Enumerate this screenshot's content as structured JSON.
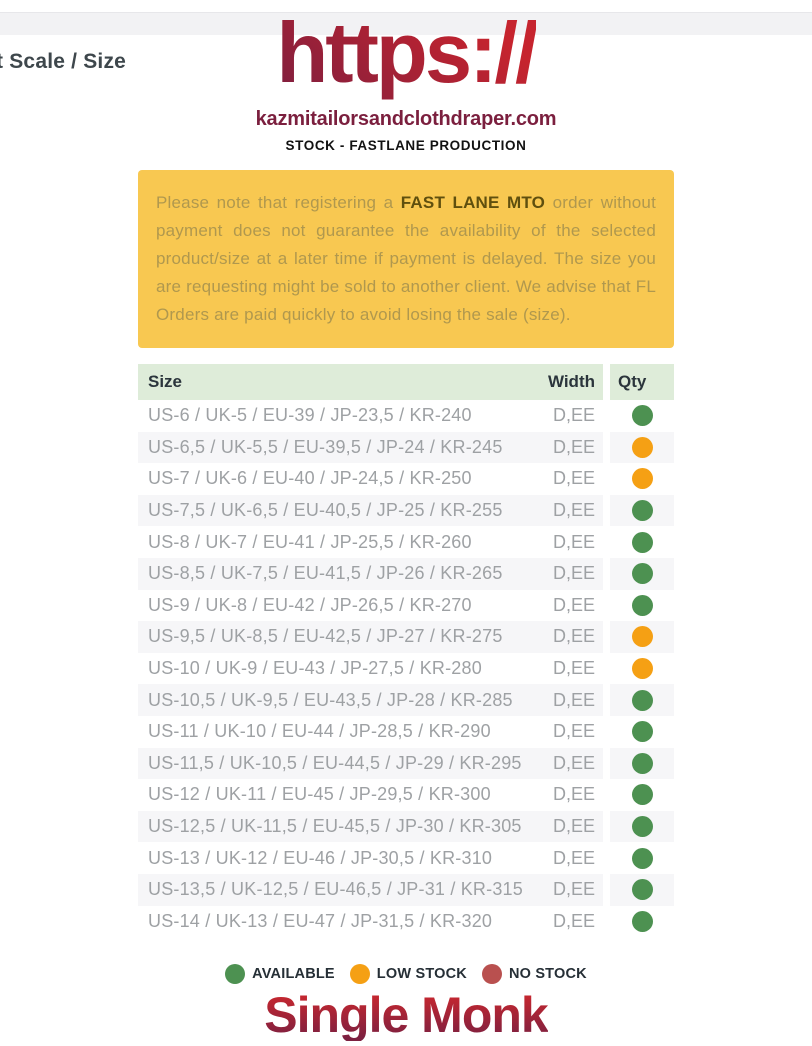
{
  "page": {
    "heading_partial": "t Scale / Size",
    "logo_text": "https://",
    "domain": "kazmitailorsandclothdraper.com",
    "subtitle": "STOCK - FASTLANE PRODUCTION",
    "product_title": "Single Monk"
  },
  "notice": {
    "prefix": "Please note that registering a ",
    "bold": "FAST LANE MTO",
    "suffix": " order without payment does not guarantee the availability of the selected product/size at a later time if payment is delayed. The size you are requesting might be sold to another client. We advise that FL Orders are paid quickly to avoid losing the sale (size)."
  },
  "table": {
    "columns": {
      "size": "Size",
      "width": "Width",
      "qty": "Qty"
    },
    "rows": [
      {
        "size": "US-6 / UK-5 / EU-39 / JP-23,5 / KR-240",
        "width": "D,EE",
        "qty": "available"
      },
      {
        "size": "US-6,5 / UK-5,5 / EU-39,5 / JP-24 / KR-245",
        "width": "D,EE",
        "qty": "low"
      },
      {
        "size": "US-7 / UK-6 / EU-40 / JP-24,5 / KR-250",
        "width": "D,EE",
        "qty": "low"
      },
      {
        "size": "US-7,5 / UK-6,5 / EU-40,5 / JP-25 / KR-255",
        "width": "D,EE",
        "qty": "available"
      },
      {
        "size": "US-8 / UK-7 / EU-41 / JP-25,5 / KR-260",
        "width": "D,EE",
        "qty": "available"
      },
      {
        "size": "US-8,5 / UK-7,5 / EU-41,5 / JP-26 / KR-265",
        "width": "D,EE",
        "qty": "available"
      },
      {
        "size": "US-9 / UK-8 / EU-42 / JP-26,5 / KR-270",
        "width": "D,EE",
        "qty": "available"
      },
      {
        "size": "US-9,5 / UK-8,5 / EU-42,5 / JP-27 / KR-275",
        "width": "D,EE",
        "qty": "low"
      },
      {
        "size": "US-10 / UK-9 / EU-43 / JP-27,5 / KR-280",
        "width": "D,EE",
        "qty": "low"
      },
      {
        "size": "US-10,5 / UK-9,5 / EU-43,5 / JP-28 / KR-285",
        "width": "D,EE",
        "qty": "available"
      },
      {
        "size": "US-11 / UK-10 / EU-44 / JP-28,5 / KR-290",
        "width": "D,EE",
        "qty": "available"
      },
      {
        "size": "US-11,5 / UK-10,5 / EU-44,5 / JP-29 / KR-295",
        "width": "D,EE",
        "qty": "available"
      },
      {
        "size": "US-12 / UK-11 / EU-45 / JP-29,5 / KR-300",
        "width": "D,EE",
        "qty": "available"
      },
      {
        "size": "US-12,5 / UK-11,5 / EU-45,5 / JP-30 / KR-305",
        "width": "D,EE",
        "qty": "available"
      },
      {
        "size": "US-13 / UK-12 / EU-46 / JP-30,5 / KR-310",
        "width": "D,EE",
        "qty": "available"
      },
      {
        "size": "US-13,5 / UK-12,5 / EU-46,5 / JP-31 / KR-315",
        "width": "D,EE",
        "qty": "available"
      },
      {
        "size": "US-14 / UK-13 / EU-47 / JP-31,5 / KR-320",
        "width": "D,EE",
        "qty": "available"
      }
    ]
  },
  "legend": {
    "items": [
      {
        "label": "AVAILABLE",
        "status": "available"
      },
      {
        "label": "LOW STOCK",
        "status": "low"
      },
      {
        "label": "NO STOCK",
        "status": "none"
      }
    ]
  },
  "colors": {
    "available": "#4d9151",
    "low": "#f5a014",
    "none": "#b9504f",
    "notice_bg": "#f8c851",
    "header_bg": "#deecd9",
    "accent_bright": "#c6242e",
    "accent_dark": "#7b1f3e"
  }
}
